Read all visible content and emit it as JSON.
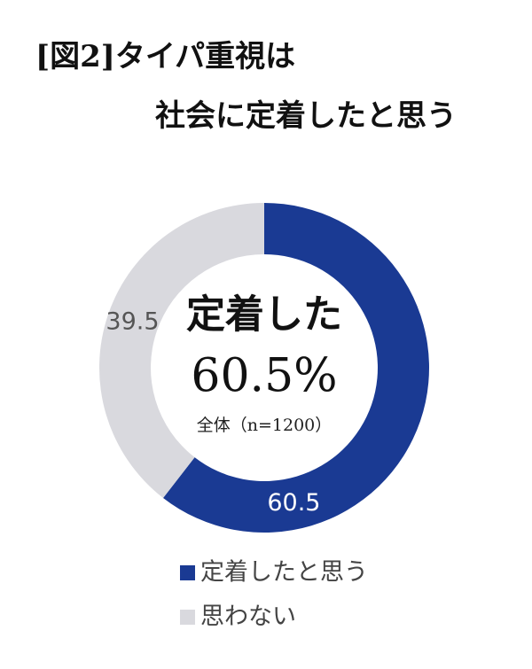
{
  "chart_data": {
    "type": "donut",
    "title": [
      "[図2]タイパ重視は",
      "社会に定着したと思う"
    ],
    "center_text": [
      "定着した",
      "60.5%",
      "全体（n=1200）"
    ],
    "series": [
      {
        "name": "定着したと思う",
        "color": "#1a3a93",
        "values": [
          60.5
        ]
      },
      {
        "name": "思わない",
        "color": "#d9d9de",
        "values": [
          39.5
        ]
      }
    ]
  }
}
